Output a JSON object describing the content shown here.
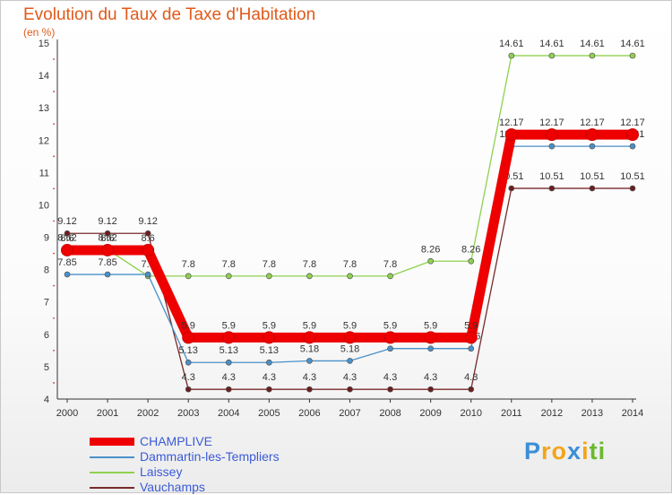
{
  "header": {
    "title": "Evolution du Taux de Taxe d'Habitation",
    "subtitle": "(en %)"
  },
  "logo": {
    "letters": [
      "P",
      "r",
      "o",
      "x",
      "i",
      "t",
      "i"
    ],
    "colors": [
      "#3a8fd6",
      "#f2a51c",
      "#f2a51c",
      "#3a8fd6",
      "#f2a51c",
      "#6ab82e",
      "#6ab82e"
    ]
  },
  "chart_data": {
    "type": "line",
    "title": "Evolution du Taux de Taxe d'Habitation",
    "ylabel": "(en %)",
    "ylim": [
      4,
      15
    ],
    "yticks": [
      "4",
      "5",
      "6",
      "7",
      "8",
      "9",
      "10",
      "11",
      "12",
      "13",
      "14",
      "15"
    ],
    "x": [
      "2000",
      "2001",
      "2002",
      "2003",
      "2004",
      "2005",
      "2006",
      "2007",
      "2008",
      "2009",
      "2010",
      "2011",
      "2012",
      "2013",
      "2014"
    ],
    "grid": false,
    "legend": "bottom-left",
    "series": [
      {
        "name": "Laissey",
        "color": "#8fd14f",
        "marker_fill": "#8fd14f",
        "values": [
          8.62,
          8.62,
          7.8,
          7.8,
          7.8,
          7.8,
          7.8,
          7.8,
          7.8,
          8.26,
          8.26,
          14.61,
          14.61,
          14.61,
          14.61
        ],
        "labels": [
          "8.62",
          "8.62",
          "7.8",
          "7.8",
          "7.8",
          "7.8",
          "7.8",
          "7.8",
          "7.8",
          "8.26",
          "8.26",
          "14.61",
          "14.61",
          "14.61",
          "14.61"
        ]
      },
      {
        "name": "Vauchamps",
        "color": "#7a2a2a",
        "marker_fill": "#6b1e1e",
        "values": [
          9.12,
          9.12,
          9.12,
          4.3,
          4.3,
          4.3,
          4.3,
          4.3,
          4.3,
          4.3,
          4.3,
          10.51,
          10.51,
          10.51,
          10.51
        ],
        "labels": [
          "9.12",
          "9.12",
          "9.12",
          "4.3",
          "4.3",
          "4.3",
          "4.3",
          "4.3",
          "4.3",
          "4.3",
          "4.3",
          "10.51",
          "10.51",
          "10.51",
          "10.51"
        ]
      },
      {
        "name": "Dammartin-les-Templiers",
        "color": "#4a90c8",
        "marker_fill": "#4a90c8",
        "values": [
          7.85,
          7.85,
          7.85,
          5.13,
          5.13,
          5.13,
          5.18,
          5.18,
          5.56,
          5.56,
          5.56,
          11.81,
          11.81,
          11.81,
          11.81
        ],
        "labels": [
          "7.85",
          "7.85",
          "",
          "5.13",
          "5.13",
          "5.13",
          "5.18",
          "5.18",
          "5.56",
          "5.56",
          "5.56",
          "11.81",
          "11.81",
          "11.81",
          "11.81"
        ]
      },
      {
        "name": "CHAMPLIVE",
        "color": "#ee0000",
        "marker_fill": "#ee0000",
        "values": [
          8.6,
          8.6,
          8.6,
          5.9,
          5.9,
          5.9,
          5.9,
          5.9,
          5.9,
          5.9,
          5.9,
          12.17,
          12.17,
          12.17,
          12.17
        ],
        "labels": [
          "8.6",
          "8.6",
          "8.6",
          "5.9",
          "5.9",
          "5.9",
          "5.9",
          "5.9",
          "5.9",
          "5.9",
          "5.9",
          "12.17",
          "12.17",
          "12.17",
          "12.17"
        ]
      }
    ],
    "legend_entries": [
      {
        "name": "CHAMPLIVE",
        "color": "#ee0000",
        "text_color": "#3b5bd6",
        "thick": true
      },
      {
        "name": "Dammartin-les-Templiers",
        "color": "#4a90c8",
        "text_color": "#3b5bd6",
        "thick": false
      },
      {
        "name": "Laissey",
        "color": "#8fd14f",
        "text_color": "#3b5bd6",
        "thick": false
      },
      {
        "name": "Vauchamps",
        "color": "#7a2a2a",
        "text_color": "#3b5bd6",
        "thick": false
      }
    ]
  }
}
